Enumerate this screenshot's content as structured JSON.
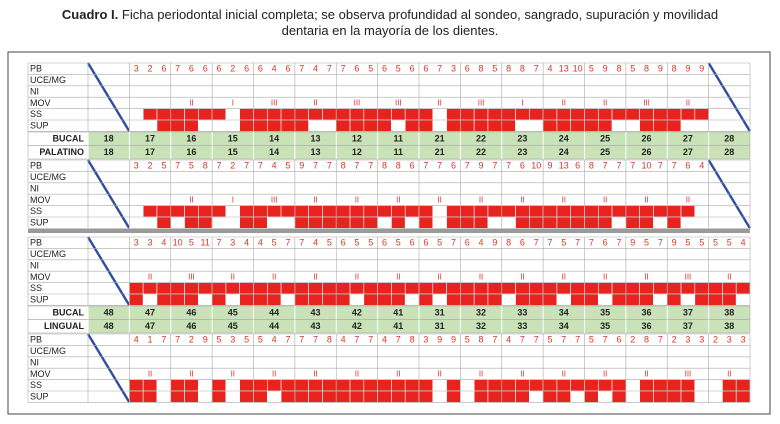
{
  "caption": {
    "label": "Cuadro I.",
    "text": "Ficha periodontal inicial completa; se observa profundidad al sondeo, sangrado, supuración y movilidad dentaria en la mayoría de los dientes."
  },
  "row_labels": [
    "PB",
    "UCE/MG",
    "NI",
    "MOV",
    "SS",
    "SUP"
  ],
  "arches": [
    {
      "teeth": [
        18,
        17,
        16,
        15,
        14,
        13,
        12,
        11,
        21,
        22,
        23,
        24,
        25,
        26,
        27,
        28
      ],
      "sides": [
        {
          "name": "BUCAL",
          "pb": [
            null,
            [
              3,
              2,
              6
            ],
            [
              7,
              6,
              6
            ],
            [
              6,
              2,
              6
            ],
            [
              6,
              4,
              6
            ],
            [
              7,
              4,
              7
            ],
            [
              7,
              6,
              5
            ],
            [
              6,
              5,
              6
            ],
            [
              6,
              7,
              3
            ],
            [
              6,
              8,
              5
            ],
            [
              8,
              8,
              7
            ],
            [
              4,
              13,
              10
            ],
            [
              5,
              9,
              8
            ],
            [
              5,
              8,
              9
            ],
            [
              8,
              9,
              9
            ],
            null
          ],
          "mov": [
            null,
            null,
            "II",
            "I",
            "III",
            "II",
            "III",
            "III",
            "II",
            "III",
            "I",
            "II",
            "II",
            "III",
            "II",
            null
          ],
          "ss": [
            null,
            [
              0,
              1,
              1
            ],
            [
              1,
              1,
              1
            ],
            [
              1,
              0,
              1
            ],
            [
              1,
              1,
              1
            ],
            [
              1,
              1,
              1
            ],
            [
              1,
              1,
              1
            ],
            [
              1,
              1,
              1
            ],
            [
              1,
              0,
              1
            ],
            [
              1,
              1,
              1
            ],
            [
              1,
              1,
              1
            ],
            [
              1,
              1,
              1
            ],
            [
              1,
              1,
              1
            ],
            [
              1,
              1,
              1
            ],
            [
              1,
              1,
              1
            ],
            null
          ],
          "sup": [
            null,
            [
              0,
              0,
              1
            ],
            [
              1,
              1,
              0
            ],
            [
              0,
              0,
              1
            ],
            [
              1,
              1,
              1
            ],
            [
              1,
              0,
              0
            ],
            [
              1,
              1,
              1
            ],
            [
              1,
              0,
              1
            ],
            [
              1,
              0,
              1
            ],
            [
              1,
              1,
              1
            ],
            [
              1,
              0,
              0
            ],
            [
              1,
              1,
              1
            ],
            [
              1,
              1,
              0
            ],
            [
              0,
              1,
              1
            ],
            [
              1,
              0,
              0
            ],
            null
          ]
        },
        {
          "name": "PALATINO",
          "pb": [
            null,
            [
              3,
              2,
              5
            ],
            [
              7,
              5,
              8
            ],
            [
              7,
              2,
              7
            ],
            [
              7,
              4,
              5
            ],
            [
              9,
              7,
              7
            ],
            [
              8,
              7,
              7
            ],
            [
              8,
              8,
              6
            ],
            [
              7,
              7,
              6
            ],
            [
              7,
              9,
              7
            ],
            [
              7,
              6,
              10
            ],
            [
              9,
              13,
              6
            ],
            [
              8,
              7,
              7
            ],
            [
              7,
              10,
              7
            ],
            [
              7,
              6,
              4
            ],
            null
          ],
          "mov": [
            null,
            null,
            "II",
            "I",
            "III",
            "II",
            "II",
            "II",
            "II",
            "II",
            "II",
            "II",
            "II",
            "II",
            "II",
            null
          ],
          "ss": [
            null,
            [
              0,
              1,
              1
            ],
            [
              1,
              1,
              1
            ],
            [
              1,
              0,
              1
            ],
            [
              1,
              1,
              1
            ],
            [
              1,
              1,
              1
            ],
            [
              1,
              1,
              1
            ],
            [
              1,
              1,
              1
            ],
            [
              1,
              0,
              1
            ],
            [
              1,
              1,
              1
            ],
            [
              1,
              1,
              1
            ],
            [
              1,
              1,
              1
            ],
            [
              1,
              1,
              1
            ],
            [
              1,
              1,
              1
            ],
            [
              1,
              1,
              0
            ],
            null
          ],
          "sup": [
            null,
            [
              0,
              0,
              1
            ],
            [
              0,
              1,
              1
            ],
            [
              0,
              0,
              1
            ],
            [
              1,
              0,
              0
            ],
            [
              1,
              1,
              1
            ],
            [
              1,
              1,
              1
            ],
            [
              0,
              1,
              0
            ],
            [
              1,
              0,
              1
            ],
            [
              1,
              1,
              0
            ],
            [
              0,
              1,
              1
            ],
            [
              1,
              1,
              1
            ],
            [
              1,
              1,
              0
            ],
            [
              1,
              1,
              0
            ],
            [
              1,
              0,
              0
            ],
            null
          ]
        }
      ]
    },
    {
      "teeth": [
        48,
        47,
        46,
        45,
        44,
        43,
        42,
        41,
        31,
        32,
        33,
        34,
        35,
        36,
        37,
        38
      ],
      "sides": [
        {
          "name": "BUCAL",
          "pb": [
            null,
            [
              3,
              3,
              4
            ],
            [
              10,
              5,
              11
            ],
            [
              7,
              3,
              4
            ],
            [
              4,
              5,
              7
            ],
            [
              7,
              4,
              5
            ],
            [
              6,
              5,
              5
            ],
            [
              6,
              5,
              6
            ],
            [
              6,
              5,
              7
            ],
            [
              6,
              4,
              9
            ],
            [
              8,
              6,
              7
            ],
            [
              7,
              5,
              7
            ],
            [
              7,
              6,
              7
            ],
            [
              9,
              5,
              7
            ],
            [
              9,
              5,
              5
            ],
            [
              5,
              5,
              4
            ]
          ],
          "mov": [
            null,
            "II",
            "III",
            "II",
            "II",
            "II",
            "II",
            "II",
            "II",
            "II",
            "II",
            "II",
            "II",
            "II",
            "III",
            "II"
          ],
          "ss": [
            null,
            [
              1,
              1,
              1
            ],
            [
              1,
              1,
              1
            ],
            [
              1,
              1,
              1
            ],
            [
              1,
              1,
              1
            ],
            [
              1,
              1,
              1
            ],
            [
              1,
              1,
              1
            ],
            [
              1,
              1,
              1
            ],
            [
              1,
              1,
              1
            ],
            [
              1,
              1,
              1
            ],
            [
              1,
              1,
              1
            ],
            [
              1,
              1,
              1
            ],
            [
              1,
              1,
              1
            ],
            [
              1,
              1,
              1
            ],
            [
              1,
              1,
              1
            ],
            [
              1,
              1,
              1
            ]
          ],
          "sup": [
            null,
            [
              1,
              0,
              1
            ],
            [
              1,
              1,
              0
            ],
            [
              1,
              0,
              1
            ],
            [
              1,
              1,
              0
            ],
            [
              1,
              1,
              1
            ],
            [
              1,
              0,
              1
            ],
            [
              1,
              1,
              0
            ],
            [
              1,
              0,
              1
            ],
            [
              1,
              1,
              1
            ],
            [
              0,
              1,
              1
            ],
            [
              1,
              0,
              1
            ],
            [
              1,
              0,
              1
            ],
            [
              1,
              1,
              0
            ],
            [
              1,
              0,
              1
            ],
            [
              1,
              1,
              0
            ]
          ]
        },
        {
          "name": "LINGUAL",
          "pb": [
            null,
            [
              4,
              1,
              7
            ],
            [
              7,
              2,
              9
            ],
            [
              5,
              3,
              5
            ],
            [
              5,
              4,
              7
            ],
            [
              7,
              7,
              8
            ],
            [
              4,
              7,
              7
            ],
            [
              4,
              7,
              8
            ],
            [
              3,
              9,
              9
            ],
            [
              5,
              8,
              7
            ],
            [
              4,
              7,
              7
            ],
            [
              5,
              7,
              7
            ],
            [
              5,
              7,
              6
            ],
            [
              2,
              8,
              7
            ],
            [
              2,
              3,
              3
            ],
            [
              2,
              3,
              3
            ]
          ],
          "mov": [
            null,
            "II",
            "II",
            "II",
            "II",
            "II",
            "II",
            "II",
            "II",
            "II",
            "II",
            "II",
            "II",
            "II",
            "III",
            "II"
          ],
          "ss": [
            null,
            [
              1,
              1,
              0
            ],
            [
              1,
              1,
              0
            ],
            [
              1,
              0,
              1
            ],
            [
              1,
              1,
              1
            ],
            [
              1,
              1,
              1
            ],
            [
              1,
              1,
              1
            ],
            [
              1,
              1,
              1
            ],
            [
              1,
              0,
              1
            ],
            [
              0,
              1,
              1
            ],
            [
              1,
              1,
              1
            ],
            [
              1,
              1,
              1
            ],
            [
              1,
              1,
              1
            ],
            [
              0,
              1,
              1
            ],
            [
              1,
              1,
              0
            ],
            [
              0,
              1,
              1
            ]
          ],
          "sup": [
            null,
            [
              1,
              1,
              0
            ],
            [
              1,
              1,
              0
            ],
            [
              1,
              0,
              1
            ],
            [
              1,
              0,
              1
            ],
            [
              1,
              1,
              1
            ],
            [
              1,
              1,
              1
            ],
            [
              1,
              1,
              1
            ],
            [
              1,
              0,
              1
            ],
            [
              0,
              1,
              1
            ],
            [
              1,
              1,
              0
            ],
            [
              1,
              1,
              0
            ],
            [
              1,
              0,
              1
            ],
            [
              0,
              1,
              1
            ],
            [
              1,
              1,
              0
            ],
            [
              0,
              1,
              1
            ]
          ]
        }
      ]
    }
  ]
}
